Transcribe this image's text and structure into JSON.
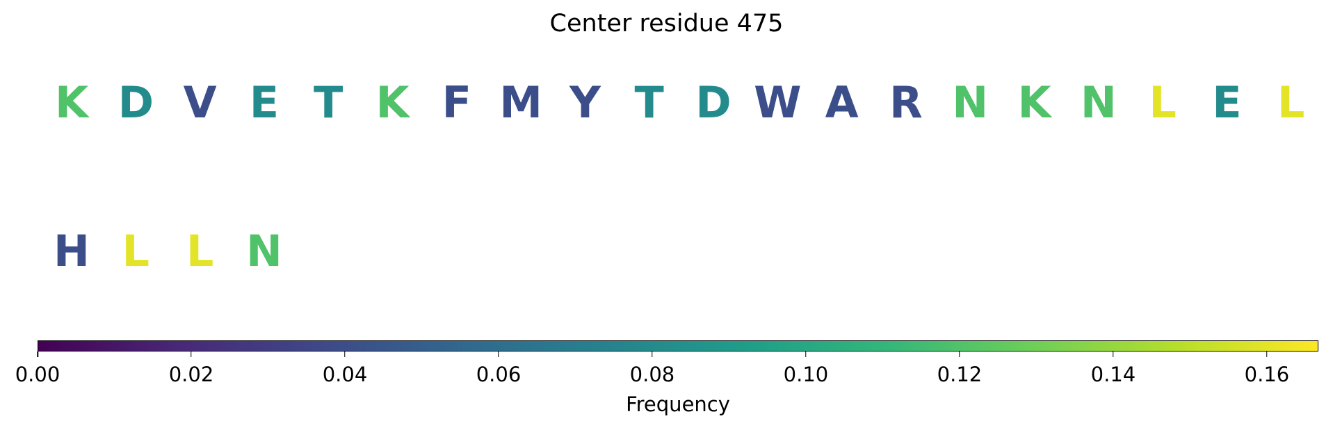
{
  "chart_data": {
    "type": "heatmap",
    "title": "Center residue 475",
    "residues": [
      {
        "letter": "K",
        "frequency": 0.12
      },
      {
        "letter": "D",
        "frequency": 0.08
      },
      {
        "letter": "V",
        "frequency": 0.04
      },
      {
        "letter": "E",
        "frequency": 0.08
      },
      {
        "letter": "T",
        "frequency": 0.08
      },
      {
        "letter": "K",
        "frequency": 0.12
      },
      {
        "letter": "F",
        "frequency": 0.04
      },
      {
        "letter": "M",
        "frequency": 0.04
      },
      {
        "letter": "Y",
        "frequency": 0.04
      },
      {
        "letter": "T",
        "frequency": 0.08
      },
      {
        "letter": "D",
        "frequency": 0.08
      },
      {
        "letter": "W",
        "frequency": 0.04
      },
      {
        "letter": "A",
        "frequency": 0.04
      },
      {
        "letter": "R",
        "frequency": 0.04
      },
      {
        "letter": "N",
        "frequency": 0.12
      },
      {
        "letter": "K",
        "frequency": 0.12
      },
      {
        "letter": "N",
        "frequency": 0.12
      },
      {
        "letter": "L",
        "frequency": 0.16
      },
      {
        "letter": "E",
        "frequency": 0.08
      },
      {
        "letter": "L",
        "frequency": 0.16
      },
      {
        "letter": "H",
        "frequency": 0.04
      },
      {
        "letter": "L",
        "frequency": 0.16
      },
      {
        "letter": "L",
        "frequency": 0.16
      },
      {
        "letter": "N",
        "frequency": 0.12
      }
    ],
    "colorbar": {
      "label": "Frequency",
      "colormap": "viridis",
      "range": [
        0,
        0.1667
      ],
      "ticks": [
        0.0,
        0.02,
        0.04,
        0.06,
        0.08,
        0.1,
        0.12,
        0.14,
        0.16
      ],
      "tick_labels": [
        "0.00",
        "0.02",
        "0.04",
        "0.06",
        "0.08",
        "0.10",
        "0.12",
        "0.14",
        "0.16"
      ]
    },
    "colors": {
      "viridis_stops": [
        "#440154",
        "#482878",
        "#3e4989",
        "#31688e",
        "#26828e",
        "#1f9e89",
        "#35b779",
        "#6ece58",
        "#b5de2b",
        "#fde725"
      ]
    }
  }
}
